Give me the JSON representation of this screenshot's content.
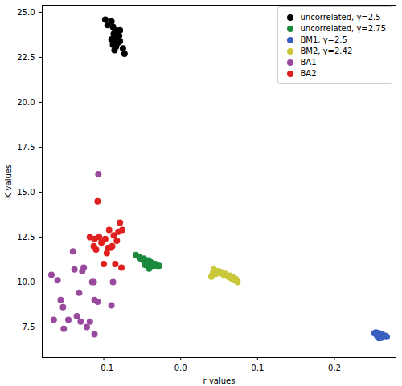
{
  "chart_data": {
    "type": "scatter",
    "x_label": "r values",
    "y_label": "K values",
    "xlim": [
      -0.18,
      0.28
    ],
    "ylim": [
      5.8,
      25.4
    ],
    "xticks": [
      {
        "value": -0.1,
        "label": "−0.1"
      },
      {
        "value": 0,
        "label": "0.0"
      },
      {
        "value": 0.1,
        "label": "0.1"
      },
      {
        "value": 0.2,
        "label": "0.2"
      }
    ],
    "yticks": [
      {
        "value": 7.5,
        "label": "7.5"
      },
      {
        "value": 10,
        "label": "10.0"
      },
      {
        "value": 12.5,
        "label": "12.5"
      },
      {
        "value": 15,
        "label": "15.0"
      },
      {
        "value": 17.5,
        "label": "17.5"
      },
      {
        "value": 20,
        "label": "20.0"
      },
      {
        "value": 22.5,
        "label": "22.5"
      },
      {
        "value": 25,
        "label": "25.0"
      }
    ],
    "grid": false,
    "legend": "upper right",
    "marker": "circle",
    "series": [
      {
        "name": "uncorrelated, γ=2.5",
        "color": "#000000",
        "x": [
          -0.098,
          -0.09,
          -0.088,
          -0.085,
          -0.083,
          -0.087,
          -0.084,
          -0.08,
          -0.086,
          -0.082,
          -0.088,
          -0.079,
          -0.084,
          -0.075,
          -0.073,
          -0.081,
          -0.095,
          -0.079,
          -0.09,
          -0.086
        ],
        "y": [
          24.6,
          24.5,
          24.2,
          24.0,
          23.9,
          23.8,
          23.6,
          23.7,
          23.4,
          23.3,
          23.2,
          23.4,
          23.1,
          23.0,
          22.7,
          23.9,
          24.3,
          24.0,
          23.5,
          22.9
        ]
      },
      {
        "name": "uncorrelated, γ=2.75",
        "color": "#1a8a3c",
        "x": [
          -0.058,
          -0.054,
          -0.052,
          -0.05,
          -0.048,
          -0.047,
          -0.045,
          -0.044,
          -0.043,
          -0.042,
          -0.041,
          -0.04,
          -0.039,
          -0.038,
          -0.036,
          -0.035,
          -0.033,
          -0.03,
          -0.028,
          -0.046,
          -0.041
        ],
        "y": [
          11.5,
          11.4,
          11.3,
          11.25,
          11.3,
          11.15,
          11.2,
          11.1,
          11.0,
          11.2,
          10.95,
          11.05,
          11.1,
          10.9,
          11.0,
          10.9,
          11.0,
          10.9,
          10.9,
          10.95,
          10.75
        ]
      },
      {
        "name": "BM1, γ=2.5",
        "color": "#3b5fc0",
        "x": [
          0.252,
          0.254,
          0.256,
          0.257,
          0.258,
          0.259,
          0.26,
          0.261,
          0.262,
          0.263,
          0.264,
          0.266,
          0.255,
          0.268,
          0.258
        ],
        "y": [
          7.15,
          7.2,
          7.1,
          7.0,
          7.15,
          6.95,
          7.05,
          6.9,
          7.1,
          7.0,
          6.95,
          7.0,
          7.05,
          6.95,
          6.88
        ]
      },
      {
        "name": "BM2, γ=2.42",
        "color": "#c9c83a",
        "x": [
          0.04,
          0.042,
          0.043,
          0.045,
          0.047,
          0.049,
          0.05,
          0.052,
          0.054,
          0.056,
          0.058,
          0.06,
          0.062,
          0.064,
          0.066,
          0.068,
          0.07,
          0.072,
          0.074,
          0.046
        ],
        "y": [
          10.3,
          10.5,
          10.7,
          10.6,
          10.55,
          10.6,
          10.5,
          10.55,
          10.5,
          10.4,
          10.45,
          10.35,
          10.3,
          10.35,
          10.2,
          10.25,
          10.1,
          10.15,
          10.0,
          10.45
        ]
      },
      {
        "name": "BA1",
        "color": "#9a4a9e",
        "x": [
          -0.168,
          -0.165,
          -0.16,
          -0.156,
          -0.153,
          -0.152,
          -0.146,
          -0.14,
          -0.138,
          -0.135,
          -0.132,
          -0.128,
          -0.126,
          -0.122,
          -0.118,
          -0.115,
          -0.113,
          -0.112,
          -0.112,
          -0.108,
          -0.107,
          -0.09,
          -0.088,
          -0.13
        ],
        "y": [
          10.4,
          7.9,
          10.1,
          9.0,
          8.6,
          7.4,
          7.9,
          11.7,
          10.7,
          8.1,
          9.4,
          10.6,
          10.8,
          7.5,
          7.8,
          10.0,
          10.0,
          7.1,
          9.0,
          8.9,
          16.0,
          8.7,
          10.0,
          7.8
        ]
      },
      {
        "name": "BA2",
        "color": "#e0201e",
        "x": [
          -0.118,
          -0.113,
          -0.112,
          -0.108,
          -0.106,
          -0.103,
          -0.1,
          -0.098,
          -0.096,
          -0.094,
          -0.093,
          -0.091,
          -0.089,
          -0.087,
          -0.085,
          -0.083,
          -0.081,
          -0.079,
          -0.077,
          -0.076,
          -0.11
        ],
        "y": [
          12.5,
          12.0,
          12.4,
          14.5,
          12.5,
          12.2,
          11.0,
          12.4,
          11.6,
          11.9,
          12.9,
          11.9,
          12.0,
          12.6,
          11.0,
          12.3,
          12.8,
          13.3,
          10.8,
          12.9,
          11.8
        ]
      }
    ]
  }
}
